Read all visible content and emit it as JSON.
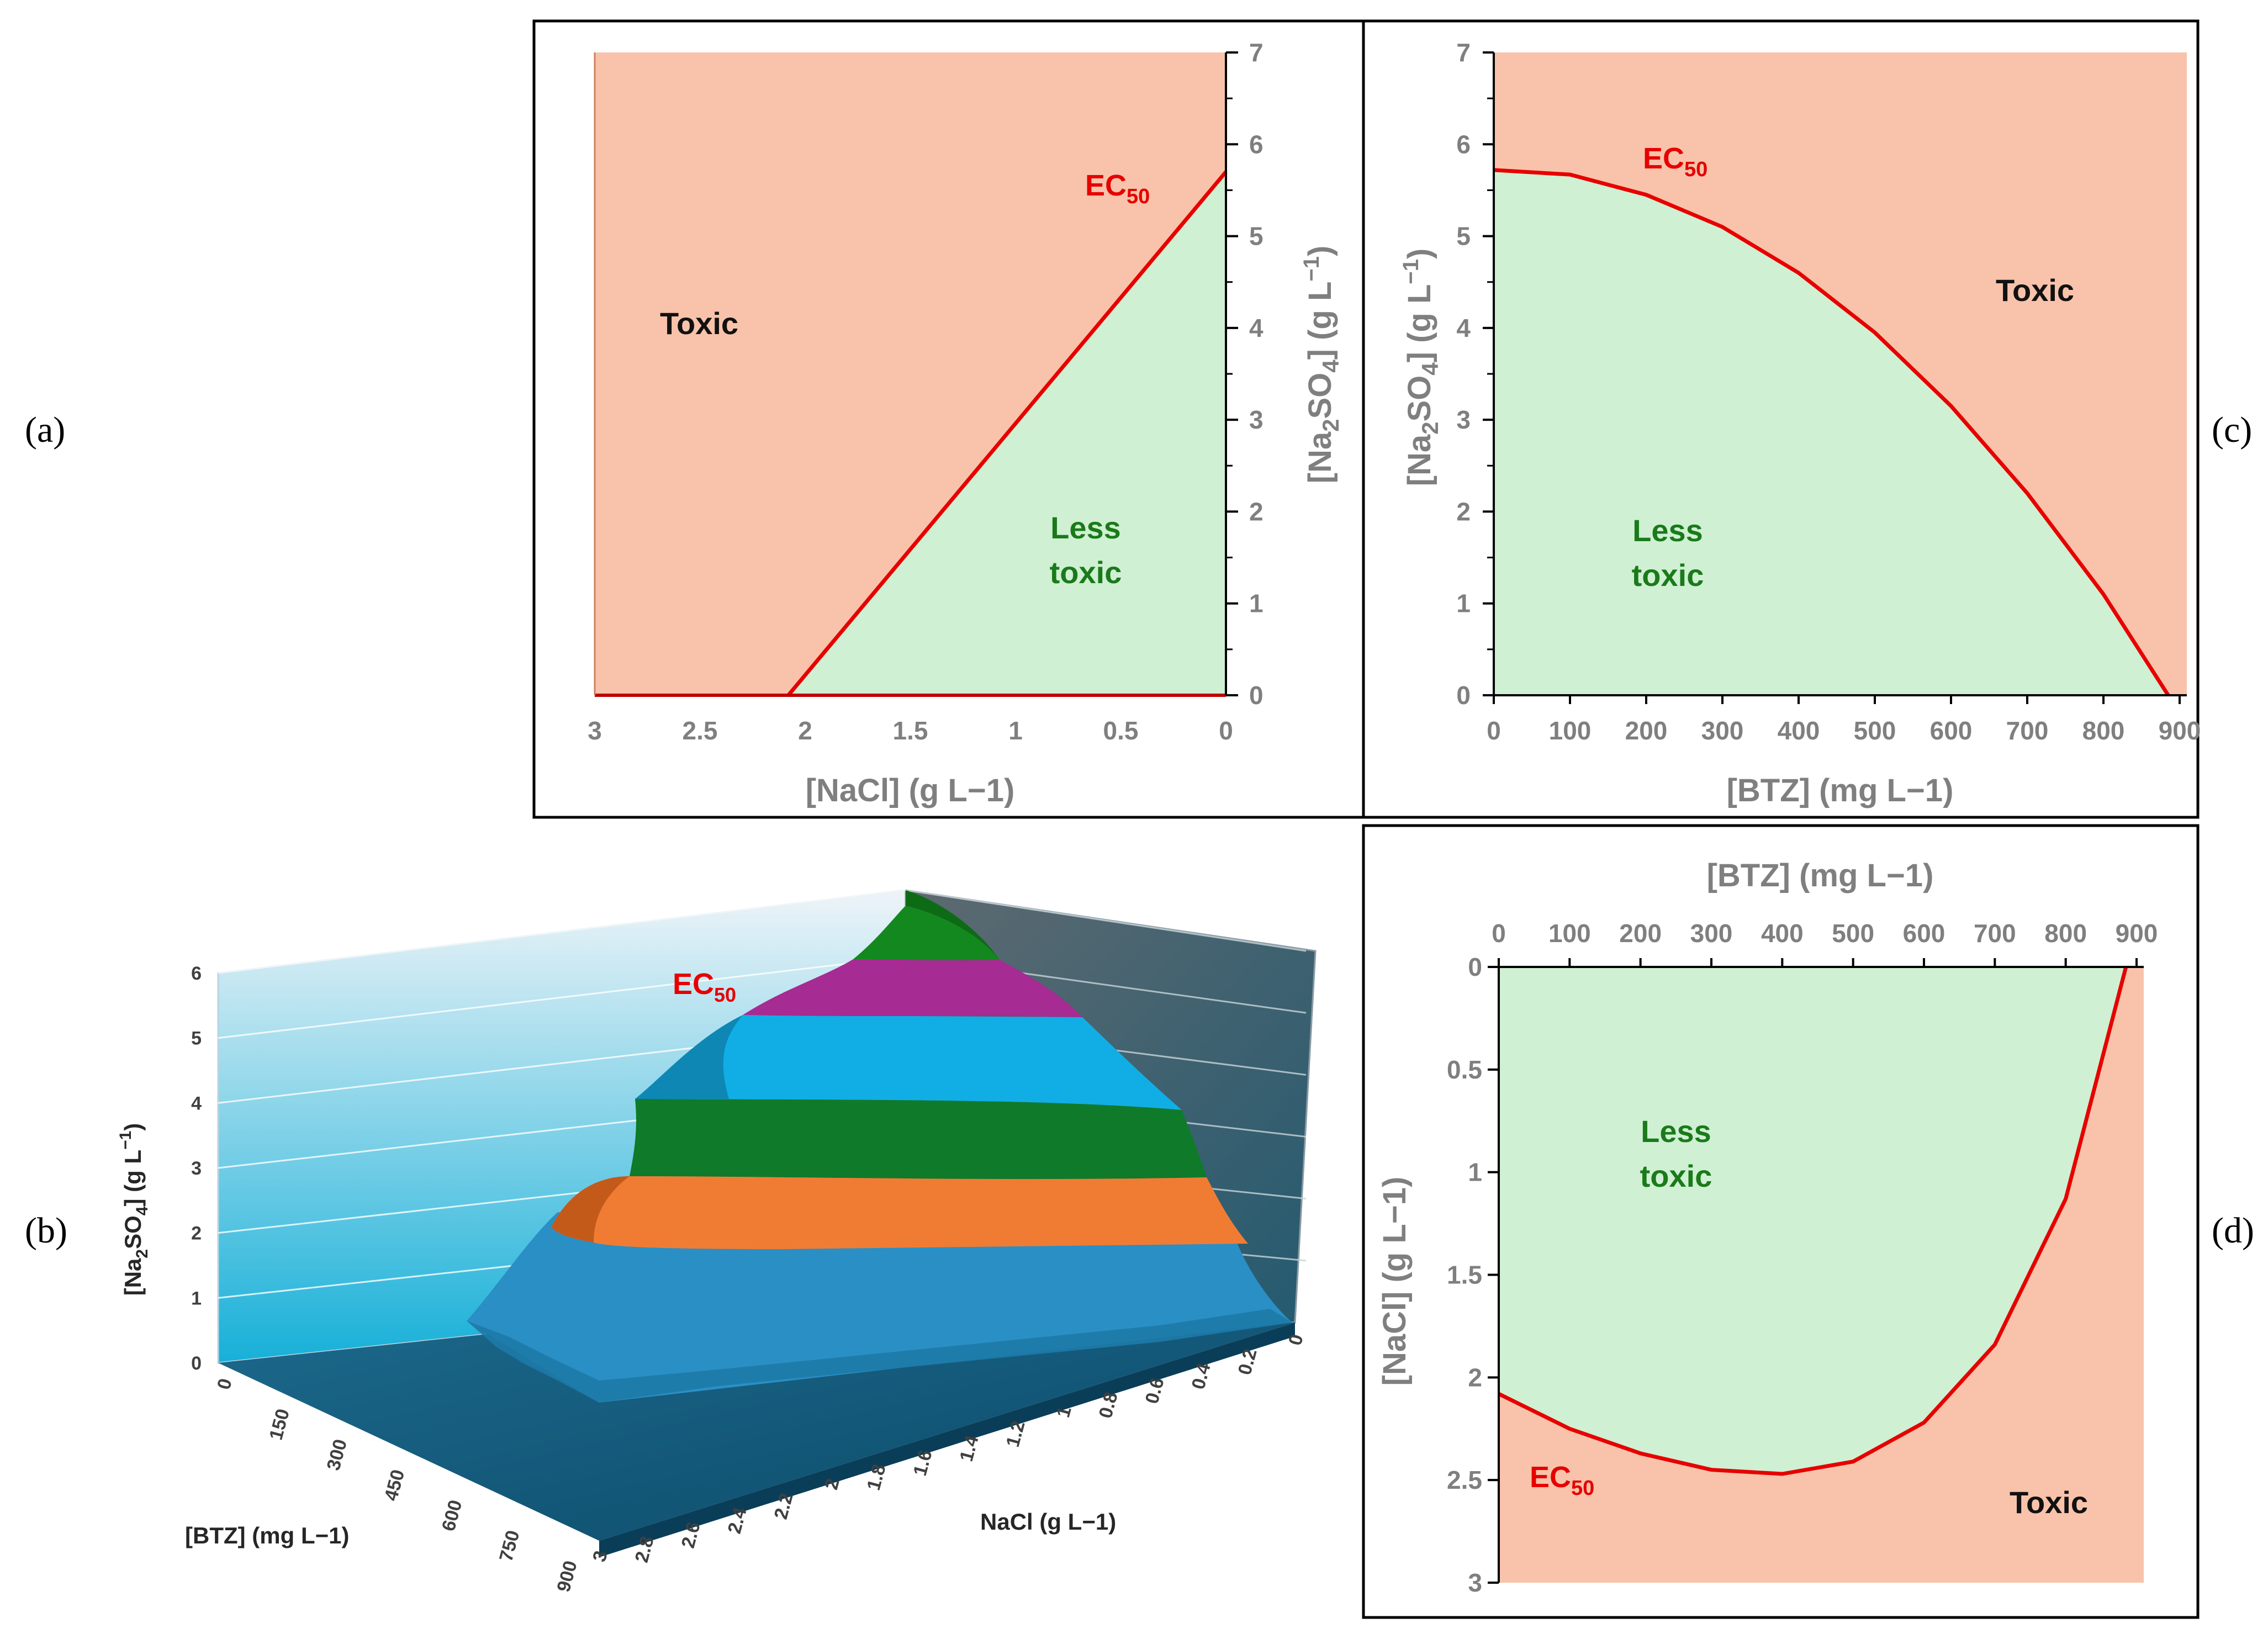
{
  "panels": {
    "a": {
      "tag": "(a)"
    },
    "b": {
      "tag": "(b)"
    },
    "c": {
      "tag": "(c)"
    },
    "d": {
      "tag": "(d)"
    }
  },
  "colors": {
    "toxic": "#f8c3aa",
    "less_toxic": "#cff0d2",
    "ec50": "#e60000"
  },
  "chart_data": [
    {
      "id": "a",
      "type": "area",
      "title": "",
      "xlabel": "[NaCl] (g L−1)",
      "ylabel": "[Na2SO4] (g L−1)",
      "xlim": [
        3,
        0
      ],
      "ylim": [
        0,
        7
      ],
      "x_reversed": true,
      "y_axis_side": "right",
      "xticks": [
        "3",
        "2.5",
        "2",
        "1.5",
        "1",
        "0.5",
        "0"
      ],
      "yticks": [
        "0",
        "1",
        "2",
        "3",
        "4",
        "5",
        "6",
        "7"
      ],
      "series": [
        {
          "name": "EC50",
          "x": [
            2.08,
            0
          ],
          "y": [
            0,
            5.7
          ]
        }
      ],
      "regions": {
        "toxic": "Toxic",
        "less_toxic_line1": "Less",
        "less_toxic_line2": "toxic"
      },
      "annotation": {
        "text": "EC",
        "sub": "50"
      }
    },
    {
      "id": "c",
      "type": "area",
      "title": "",
      "xlabel": "[BTZ] (mg L−1)",
      "ylabel": "[Na2SO4] (g L−1)",
      "xlim": [
        0,
        900
      ],
      "ylim": [
        0,
        7
      ],
      "xticks": [
        "0",
        "100",
        "200",
        "300",
        "400",
        "500",
        "600",
        "700",
        "800",
        "900"
      ],
      "yticks": [
        "0",
        "1",
        "2",
        "3",
        "4",
        "5",
        "6",
        "7"
      ],
      "series": [
        {
          "name": "EC50",
          "x": [
            0,
            100,
            200,
            300,
            400,
            500,
            600,
            700,
            800,
            885
          ],
          "y": [
            5.72,
            5.67,
            5.45,
            5.1,
            4.6,
            3.95,
            3.15,
            2.2,
            1.1,
            0
          ]
        }
      ],
      "regions": {
        "toxic": "Toxic",
        "less_toxic_line1": "Less",
        "less_toxic_line2": "toxic"
      },
      "annotation": {
        "text": "EC",
        "sub": "50"
      }
    },
    {
      "id": "d",
      "type": "area",
      "title": "",
      "xlabel": "[BTZ] (mg L−1)",
      "ylabel": "[NaCl] (g L−1)",
      "xlim": [
        0,
        900
      ],
      "ylim": [
        3,
        0
      ],
      "x_axis_side": "top",
      "y_reversed": true,
      "xticks": [
        "0",
        "100",
        "200",
        "300",
        "400",
        "500",
        "600",
        "700",
        "800",
        "900"
      ],
      "yticks": [
        "0",
        "0.5",
        "1",
        "1.5",
        "2",
        "2.5",
        "3"
      ],
      "series": [
        {
          "name": "EC50",
          "x": [
            0,
            100,
            200,
            300,
            400,
            500,
            600,
            700,
            800,
            885
          ],
          "y": [
            2.08,
            2.25,
            2.37,
            2.45,
            2.47,
            2.41,
            2.22,
            1.84,
            1.13,
            0
          ]
        }
      ],
      "regions": {
        "toxic": "Toxic",
        "less_toxic_line1": "Less",
        "less_toxic_line2": "toxic"
      },
      "annotation": {
        "text": "EC",
        "sub": "50"
      }
    },
    {
      "id": "b",
      "type": "surface",
      "title": "",
      "xlabel": "[BTZ] (mg L−1)",
      "ylabel": "NaCl (g L−1)",
      "zlabel": "[Na2SO4] (g L−1)",
      "xticks": [
        "0",
        "150",
        "300",
        "450",
        "600",
        "750",
        "900"
      ],
      "yticks": [
        "3",
        "2.8",
        "2.6",
        "2.4",
        "2.2",
        "2",
        "1.8",
        "1.6",
        "1.4",
        "1.2",
        "1",
        "0.8",
        "0.6",
        "0.4",
        "0.2",
        "0"
      ],
      "zticks": [
        "0",
        "1",
        "2",
        "3",
        "4",
        "5",
        "6"
      ],
      "bands": [
        {
          "from": 0,
          "to": 1,
          "color": "#2a8fc4"
        },
        {
          "from": 1,
          "to": 2,
          "color": "#f07c34"
        },
        {
          "from": 2,
          "to": 3,
          "color": "#0f7a2a"
        },
        {
          "from": 3,
          "to": 4,
          "color": "#11aee6"
        },
        {
          "from": 4,
          "to": 5,
          "color": "#a62b92"
        },
        {
          "from": 5,
          "to": 6,
          "color": "#13881e"
        }
      ],
      "annotation": {
        "text": "EC",
        "sub": "50"
      }
    }
  ]
}
